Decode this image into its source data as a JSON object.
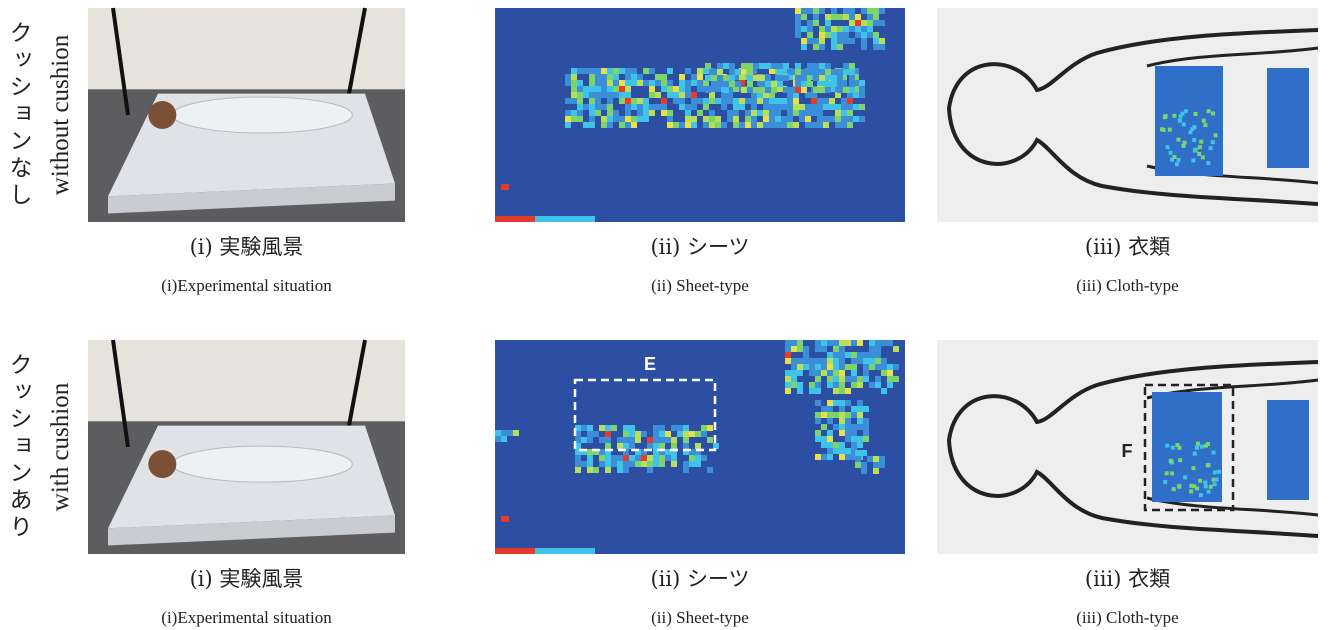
{
  "rows": [
    {
      "label_ja": "クッションなし",
      "label_en": "without cushion",
      "panels": [
        {
          "caption_ja": "(i) 実験風景",
          "caption_en": "(i)Experimental situation"
        },
        {
          "caption_ja": "(ii) シーツ",
          "caption_en": "(ii) Sheet-type"
        },
        {
          "caption_ja": "(iii) 衣類",
          "caption_en": "(iii) Cloth-type"
        }
      ]
    },
    {
      "label_ja": "クッションあり",
      "label_en": "with cushion",
      "panels": [
        {
          "caption_ja": "(i) 実験風景",
          "caption_en": "(i)Experimental situation"
        },
        {
          "caption_ja": "(ii) シーツ",
          "caption_en": "(ii) Sheet-type",
          "annotation": "E"
        },
        {
          "caption_ja": "(iii) 衣類",
          "caption_en": "(iii) Cloth-type",
          "annotation": "F"
        }
      ]
    }
  ]
}
